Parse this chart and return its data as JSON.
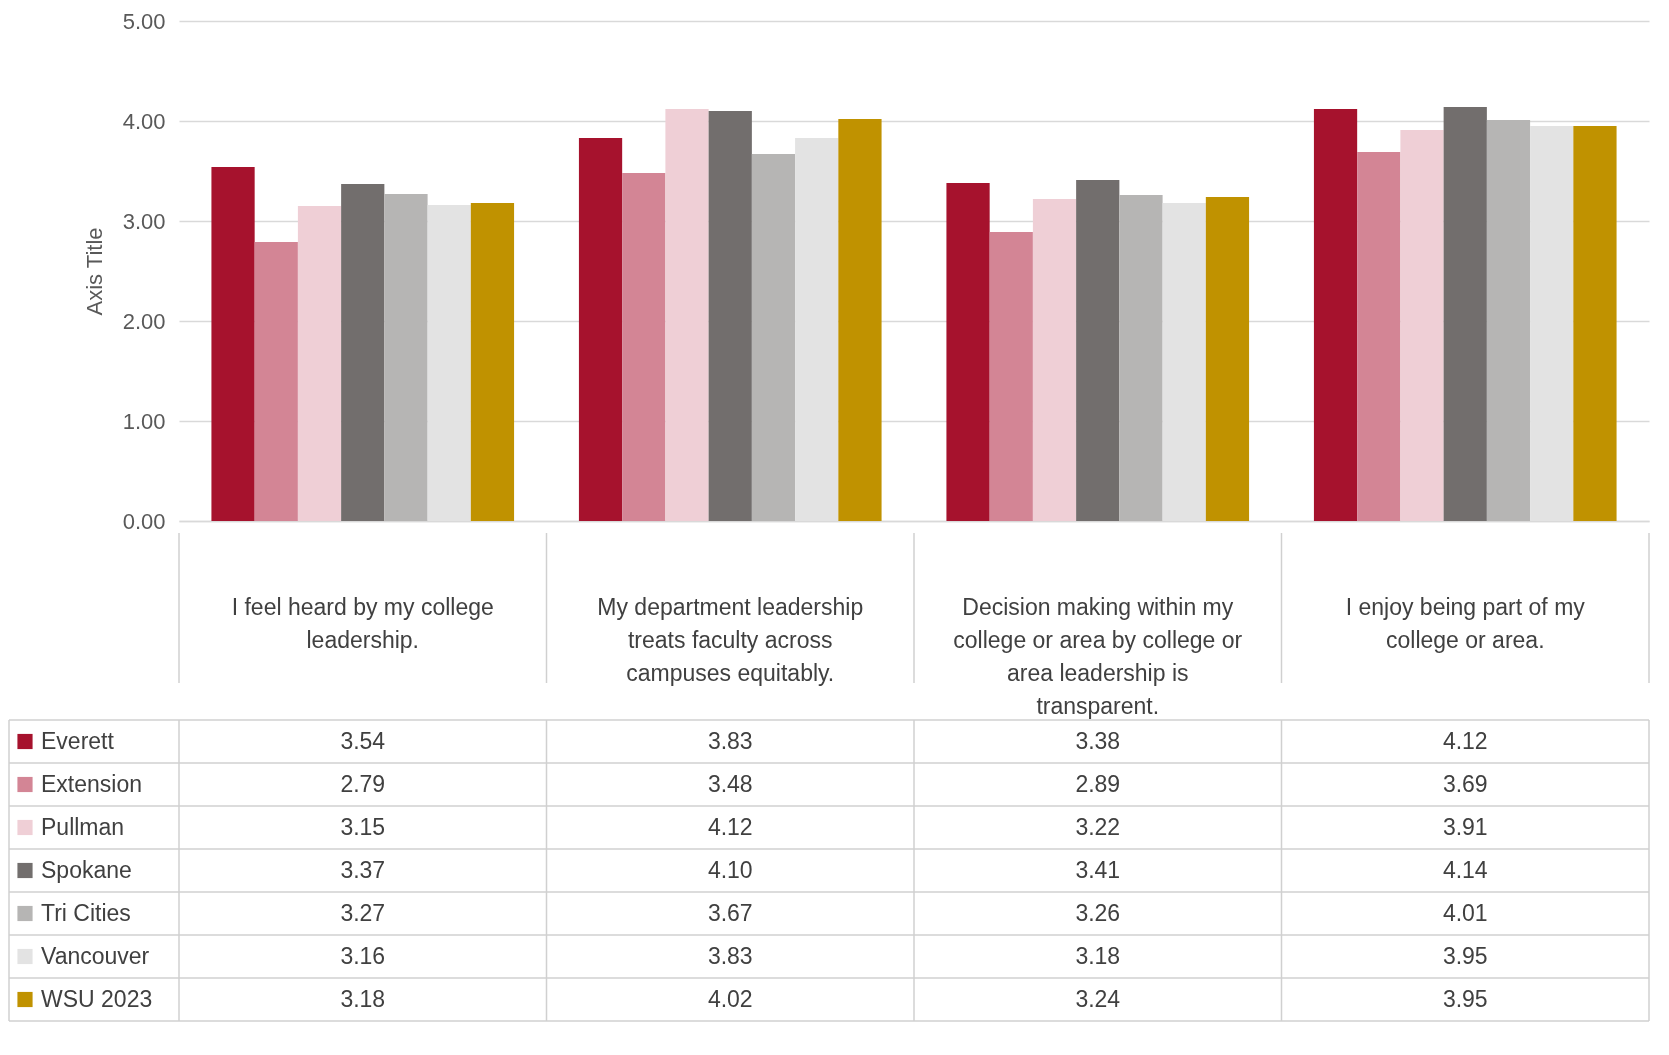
{
  "chart_data": {
    "type": "bar",
    "ylabel": "Axis Title",
    "categories": [
      "I feel heard by my college leadership.",
      "My department leadership treats faculty across campuses equitably.",
      "Decision making within my college or area by college or area leadership is transparent.",
      "I enjoy being part of my college or area."
    ],
    "series": [
      {
        "name": "Everett",
        "color": "#a6122d",
        "values": [
          3.54,
          3.83,
          3.38,
          4.12
        ],
        "value_labels": [
          "3.54",
          "3.83",
          "3.38",
          "4.12"
        ]
      },
      {
        "name": "Extension",
        "color": "#d38595",
        "values": [
          2.79,
          3.48,
          2.89,
          3.69
        ],
        "value_labels": [
          "2.79",
          "3.48",
          "2.89",
          "3.69"
        ]
      },
      {
        "name": "Pullman",
        "color": "#efcfd6",
        "values": [
          3.15,
          4.12,
          3.22,
          3.91
        ],
        "value_labels": [
          "3.15",
          "4.12",
          "3.22",
          "3.91"
        ]
      },
      {
        "name": "Spokane",
        "color": "#726e6d",
        "values": [
          3.37,
          4.1,
          3.41,
          4.14
        ],
        "value_labels": [
          "3.37",
          "4.10",
          "3.41",
          "4.14"
        ]
      },
      {
        "name": "Tri Cities",
        "color": "#b6b5b4",
        "values": [
          3.27,
          3.67,
          3.26,
          4.01
        ],
        "value_labels": [
          "3.27",
          "3.67",
          "3.26",
          "4.01"
        ]
      },
      {
        "name": "Vancouver",
        "color": "#e3e3e3",
        "values": [
          3.16,
          3.83,
          3.18,
          3.95
        ],
        "value_labels": [
          "3.16",
          "3.83",
          "3.18",
          "3.95"
        ]
      },
      {
        "name": "WSU 2023",
        "color": "#c09200",
        "values": [
          3.18,
          4.02,
          3.24,
          3.95
        ],
        "value_labels": [
          "3.18",
          "4.02",
          "3.24",
          "3.95"
        ]
      }
    ],
    "ylim": [
      0,
      5
    ],
    "yticks": [
      {
        "value": 0,
        "label": "0.00"
      },
      {
        "value": 1,
        "label": "1.00"
      },
      {
        "value": 2,
        "label": "2.00"
      },
      {
        "value": 3,
        "label": "3.00"
      },
      {
        "value": 4,
        "label": "4.00"
      },
      {
        "value": 5,
        "label": "5.00"
      }
    ],
    "grid": "y",
    "legend": "bottom"
  }
}
